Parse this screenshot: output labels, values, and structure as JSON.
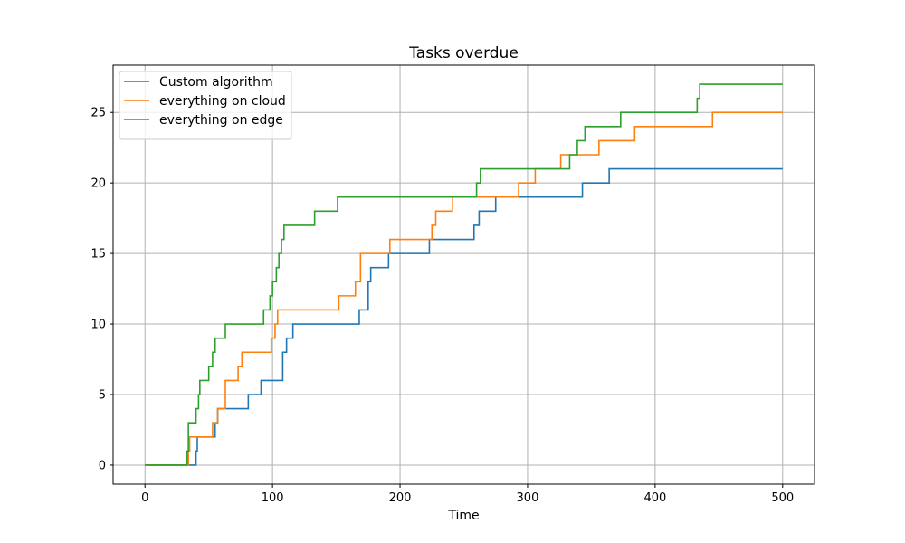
{
  "chart_data": {
    "type": "line",
    "title": "Tasks overdue",
    "xlabel": "Time",
    "ylabel": "",
    "xlim": [
      -25,
      525
    ],
    "ylim": [
      -1.35,
      28.35
    ],
    "xticks": [
      0,
      100,
      200,
      300,
      400,
      500
    ],
    "yticks": [
      0,
      5,
      10,
      15,
      20,
      25
    ],
    "grid": true,
    "legend_position": "top-left",
    "series": [
      {
        "name": "Custom algorithm",
        "color": "#1f77b4",
        "points": [
          [
            0,
            0
          ],
          [
            40,
            0
          ],
          [
            40,
            1
          ],
          [
            41,
            1
          ],
          [
            41,
            2
          ],
          [
            55,
            2
          ],
          [
            55,
            3
          ],
          [
            57,
            3
          ],
          [
            57,
            4
          ],
          [
            81,
            4
          ],
          [
            81,
            5
          ],
          [
            91,
            5
          ],
          [
            91,
            6
          ],
          [
            108,
            6
          ],
          [
            108,
            8
          ],
          [
            111,
            8
          ],
          [
            111,
            9
          ],
          [
            116,
            9
          ],
          [
            116,
            10
          ],
          [
            168,
            10
          ],
          [
            168,
            11
          ],
          [
            175,
            11
          ],
          [
            175,
            13
          ],
          [
            177,
            13
          ],
          [
            177,
            14
          ],
          [
            191,
            14
          ],
          [
            191,
            15
          ],
          [
            223,
            15
          ],
          [
            223,
            16
          ],
          [
            258,
            16
          ],
          [
            258,
            17
          ],
          [
            262,
            17
          ],
          [
            262,
            18
          ],
          [
            275,
            18
          ],
          [
            275,
            19
          ],
          [
            343,
            19
          ],
          [
            343,
            20
          ],
          [
            364,
            20
          ],
          [
            364,
            21
          ],
          [
            500,
            21
          ]
        ]
      },
      {
        "name": "everything on cloud",
        "color": "#ff7f0e",
        "points": [
          [
            0,
            0
          ],
          [
            34,
            0
          ],
          [
            34,
            1
          ],
          [
            35,
            1
          ],
          [
            35,
            2
          ],
          [
            53,
            2
          ],
          [
            53,
            3
          ],
          [
            57,
            3
          ],
          [
            57,
            4
          ],
          [
            63,
            4
          ],
          [
            63,
            6
          ],
          [
            73,
            6
          ],
          [
            73,
            7
          ],
          [
            76,
            7
          ],
          [
            76,
            8
          ],
          [
            99,
            8
          ],
          [
            99,
            9
          ],
          [
            102,
            9
          ],
          [
            102,
            10
          ],
          [
            104,
            10
          ],
          [
            104,
            11
          ],
          [
            152,
            11
          ],
          [
            152,
            12
          ],
          [
            165,
            12
          ],
          [
            165,
            13
          ],
          [
            169,
            13
          ],
          [
            169,
            15
          ],
          [
            192,
            15
          ],
          [
            192,
            16
          ],
          [
            225,
            16
          ],
          [
            225,
            17
          ],
          [
            228,
            17
          ],
          [
            228,
            18
          ],
          [
            241,
            18
          ],
          [
            241,
            19
          ],
          [
            293,
            19
          ],
          [
            293,
            20
          ],
          [
            306,
            20
          ],
          [
            306,
            21
          ],
          [
            326,
            21
          ],
          [
            326,
            22
          ],
          [
            356,
            22
          ],
          [
            356,
            23
          ],
          [
            384,
            23
          ],
          [
            384,
            24
          ],
          [
            445,
            24
          ],
          [
            445,
            25
          ],
          [
            500,
            25
          ]
        ]
      },
      {
        "name": "everything on edge",
        "color": "#2ca02c",
        "points": [
          [
            0,
            0
          ],
          [
            33,
            0
          ],
          [
            33,
            1
          ],
          [
            34,
            1
          ],
          [
            34,
            3
          ],
          [
            40,
            3
          ],
          [
            40,
            4
          ],
          [
            42,
            4
          ],
          [
            42,
            5
          ],
          [
            43,
            5
          ],
          [
            43,
            6
          ],
          [
            50,
            6
          ],
          [
            50,
            7
          ],
          [
            53,
            7
          ],
          [
            53,
            8
          ],
          [
            55,
            8
          ],
          [
            55,
            9
          ],
          [
            63,
            9
          ],
          [
            63,
            10
          ],
          [
            93,
            10
          ],
          [
            93,
            11
          ],
          [
            98,
            11
          ],
          [
            98,
            12
          ],
          [
            100,
            12
          ],
          [
            100,
            13
          ],
          [
            103,
            13
          ],
          [
            103,
            14
          ],
          [
            105,
            14
          ],
          [
            105,
            15
          ],
          [
            107,
            15
          ],
          [
            107,
            16
          ],
          [
            109,
            16
          ],
          [
            109,
            17
          ],
          [
            133,
            17
          ],
          [
            133,
            18
          ],
          [
            151,
            18
          ],
          [
            151,
            19
          ],
          [
            260,
            19
          ],
          [
            260,
            20
          ],
          [
            263,
            20
          ],
          [
            263,
            21
          ],
          [
            333,
            21
          ],
          [
            333,
            22
          ],
          [
            339,
            22
          ],
          [
            339,
            23
          ],
          [
            345,
            23
          ],
          [
            345,
            24
          ],
          [
            373,
            24
          ],
          [
            373,
            25
          ],
          [
            433,
            25
          ],
          [
            433,
            26
          ],
          [
            435,
            26
          ],
          [
            435,
            27
          ],
          [
            500,
            27
          ]
        ]
      }
    ]
  }
}
